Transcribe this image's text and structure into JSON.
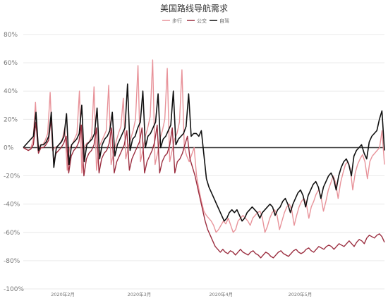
{
  "chart_data": {
    "type": "line",
    "title": "美国路线导航需求",
    "xlabel": "",
    "ylabel": "",
    "ylim": [
      -100,
      80
    ],
    "y_ticks": [
      80,
      60,
      40,
      20,
      0,
      -20,
      -40,
      -60,
      -80,
      -100
    ],
    "y_tick_labels": [
      "80%",
      "60%",
      "40%",
      "20%",
      "0%",
      "-20%",
      "-40%",
      "-60%",
      "-80%",
      "-100%"
    ],
    "x_tick_labels": [
      "2020年2月",
      "2020年3月",
      "2020年4月",
      "2020年5月"
    ],
    "x_tick_days": [
      15,
      44,
      75,
      105
    ],
    "x_range_days": [
      0,
      137
    ],
    "legend_position": "top-center",
    "grid": true,
    "series": [
      {
        "name": "步行",
        "color": "#e8939a",
        "values": [
          0,
          -1,
          -2,
          -1,
          5,
          32,
          -2,
          2,
          2,
          5,
          10,
          39,
          -2,
          0,
          1,
          3,
          6,
          14,
          -16,
          0,
          2,
          6,
          10,
          40,
          -18,
          0,
          3,
          4,
          8,
          43,
          -16,
          0,
          4,
          8,
          12,
          44,
          -12,
          -4,
          4,
          10,
          15,
          35,
          -8,
          0,
          6,
          12,
          20,
          58,
          -10,
          -2,
          8,
          14,
          22,
          62,
          -12,
          -4,
          6,
          12,
          20,
          56,
          -10,
          -2,
          6,
          10,
          18,
          55,
          0,
          -6,
          -10,
          -5,
          0,
          -20,
          -30,
          -38,
          -45,
          -48,
          -50,
          -52,
          -55,
          -60,
          -58,
          -55,
          -52,
          -54,
          -50,
          -55,
          -60,
          -58,
          -52,
          -50,
          -48,
          -50,
          -52,
          -55,
          -50,
          -48,
          -46,
          -45,
          -50,
          -60,
          -56,
          -50,
          -46,
          -44,
          -48,
          -58,
          -52,
          -46,
          -42,
          -40,
          -44,
          -55,
          -48,
          -42,
          -38,
          -36,
          -40,
          -50,
          -42,
          -38,
          -33,
          -30,
          -35,
          -45,
          -38,
          -30,
          -25,
          -20,
          -25,
          -36,
          -25,
          -18,
          -12,
          -10,
          -15,
          -30,
          -18,
          -12,
          -8,
          -5,
          -10,
          -22,
          -10,
          -6,
          -4,
          -2,
          0,
          12,
          -12
        ],
        "x_start": 0,
        "x_end": 137
      },
      {
        "name": "公交",
        "color": "#9b2d3f",
        "values": [
          0,
          -1,
          -2,
          -1,
          2,
          18,
          -4,
          0,
          0,
          2,
          5,
          20,
          -10,
          -4,
          -2,
          0,
          3,
          8,
          -18,
          -6,
          -2,
          0,
          4,
          16,
          -20,
          -8,
          -4,
          -2,
          2,
          14,
          -18,
          -8,
          -4,
          -2,
          3,
          14,
          -18,
          -10,
          -6,
          -2,
          2,
          12,
          -16,
          -8,
          -4,
          0,
          4,
          14,
          -18,
          -10,
          -6,
          -2,
          4,
          16,
          -18,
          -10,
          -6,
          -4,
          2,
          14,
          -18,
          -10,
          -8,
          -4,
          2,
          8,
          -8,
          -14,
          -20,
          -28,
          -36,
          -44,
          -52,
          -58,
          -62,
          -66,
          -70,
          -72,
          -74,
          -72,
          -74,
          -75,
          -73,
          -74,
          -76,
          -74,
          -72,
          -74,
          -75,
          -76,
          -74,
          -73,
          -75,
          -76,
          -78,
          -76,
          -74,
          -75,
          -77,
          -78,
          -76,
          -74,
          -73,
          -75,
          -76,
          -77,
          -75,
          -73,
          -72,
          -74,
          -75,
          -74,
          -72,
          -71,
          -73,
          -74,
          -72,
          -70,
          -71,
          -72,
          -70,
          -69,
          -70,
          -72,
          -70,
          -68,
          -69,
          -70,
          -68,
          -66,
          -68,
          -70,
          -67,
          -65,
          -66,
          -68,
          -64,
          -62,
          -63,
          -64,
          -62,
          -61,
          -63,
          -67
        ],
        "x_start": 0,
        "x_end": 137
      },
      {
        "name": "自驾",
        "color": "#111111",
        "values": [
          0,
          2,
          4,
          6,
          8,
          25,
          -2,
          2,
          2,
          4,
          8,
          25,
          -14,
          0,
          2,
          4,
          8,
          24,
          -12,
          2,
          4,
          6,
          10,
          30,
          -10,
          2,
          4,
          6,
          10,
          28,
          -8,
          2,
          6,
          8,
          12,
          25,
          -6,
          2,
          6,
          10,
          14,
          45,
          -2,
          6,
          8,
          14,
          18,
          40,
          0,
          8,
          10,
          14,
          18,
          38,
          0,
          6,
          8,
          12,
          16,
          40,
          2,
          6,
          8,
          10,
          15,
          38,
          8,
          10,
          10,
          8,
          12,
          -5,
          -22,
          -28,
          -32,
          -36,
          -40,
          -44,
          -48,
          -52,
          -50,
          -46,
          -44,
          -46,
          -44,
          -48,
          -52,
          -50,
          -46,
          -44,
          -42,
          -44,
          -46,
          -50,
          -46,
          -44,
          -42,
          -40,
          -42,
          -48,
          -44,
          -42,
          -38,
          -36,
          -40,
          -46,
          -40,
          -36,
          -32,
          -30,
          -34,
          -42,
          -34,
          -30,
          -26,
          -24,
          -28,
          -36,
          -28,
          -24,
          -20,
          -18,
          -22,
          -30,
          -20,
          -14,
          -10,
          -8,
          -12,
          -20,
          -6,
          -2,
          0,
          2,
          -4,
          -8,
          4,
          8,
          10,
          12,
          20,
          26,
          -2
        ],
        "x_start": 0,
        "x_end": 137
      }
    ]
  }
}
